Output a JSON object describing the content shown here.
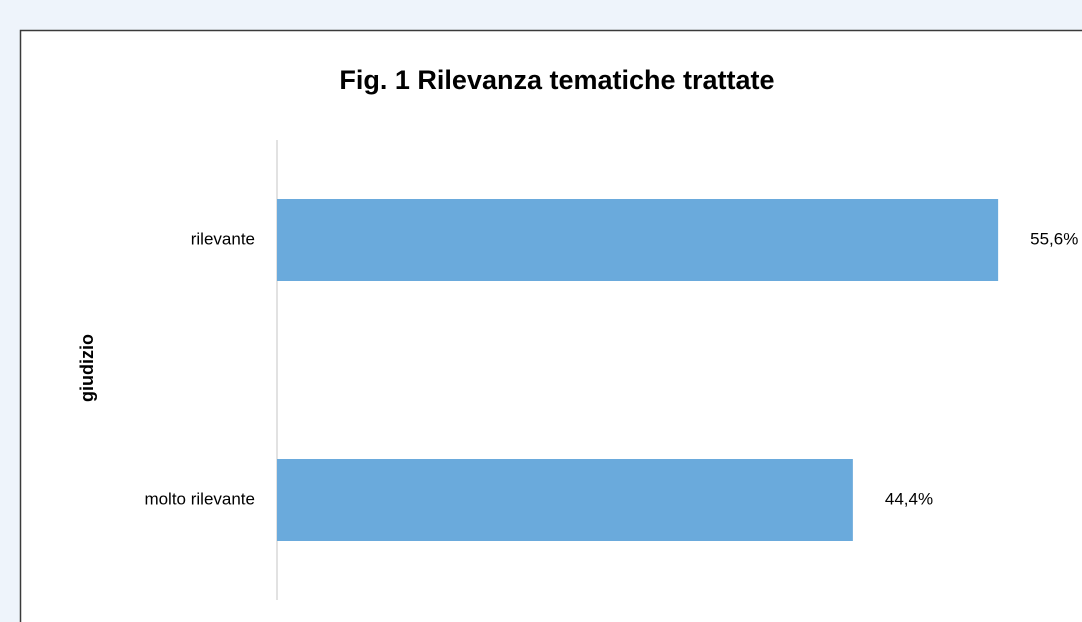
{
  "chart_data": {
    "type": "bar",
    "orientation": "horizontal",
    "title": "Fig. 1 Rilevanza tematiche trattate",
    "y_label": "giudizio",
    "categories": [
      "rilevante",
      "molto rilevante"
    ],
    "values": [
      55.6,
      44.4
    ],
    "value_labels": [
      "55,6%",
      "44,4%"
    ],
    "color": "#6aaadc"
  }
}
